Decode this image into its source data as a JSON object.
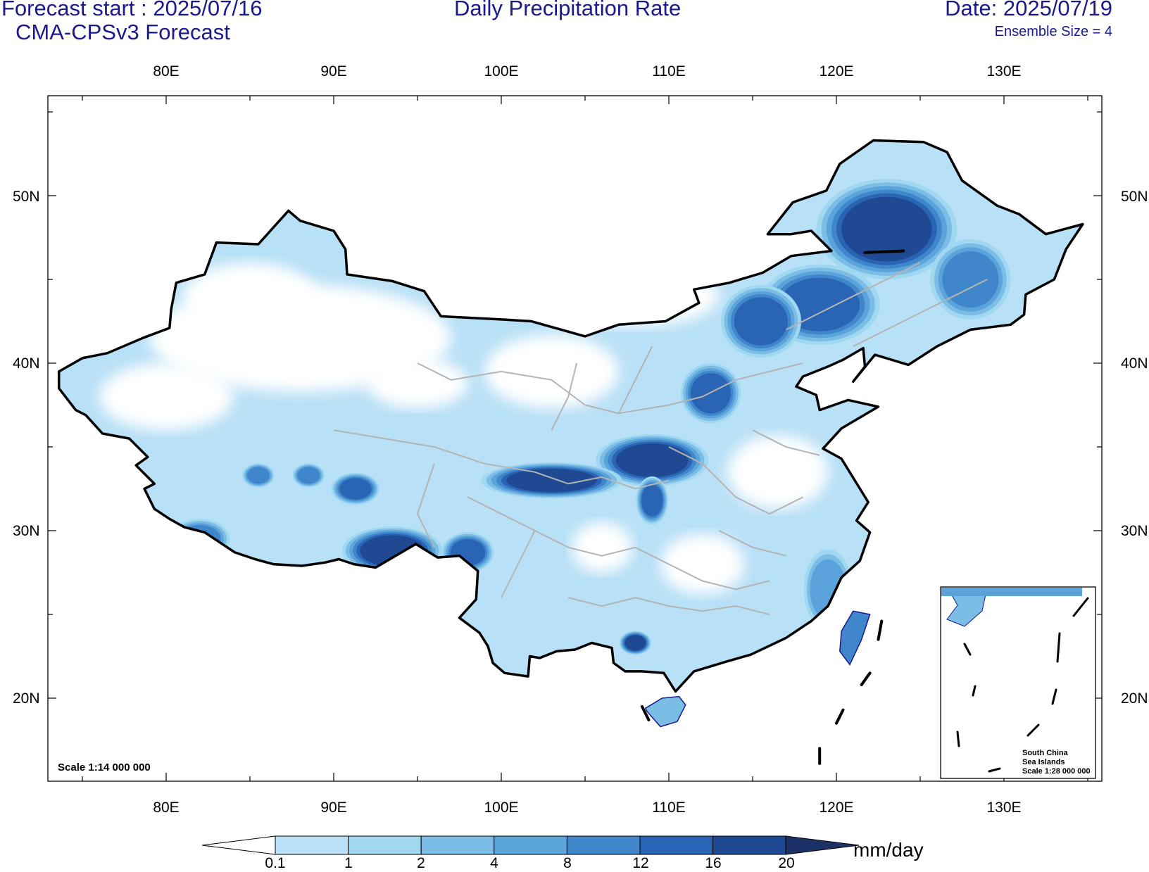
{
  "header": {
    "forecast_start": "Forecast start : 2025/07/16",
    "model": "CMA-CPSv3 Forecast",
    "title": "Daily Precipitation Rate",
    "date": "Date: 2025/07/19",
    "ensemble": "Ensemble Size = 4"
  },
  "axes": {
    "lon_labels": [
      "80E",
      "90E",
      "100E",
      "110E",
      "120E",
      "130E"
    ],
    "lat_labels": [
      "50N",
      "40N",
      "30N",
      "20N"
    ]
  },
  "map": {
    "extent": {
      "lon": [
        72,
        135
      ],
      "lat": [
        15,
        55
      ]
    },
    "scale_note": "Scale 1:14 000 000",
    "inset_label": [
      "South China",
      "Sea Islands",
      "Scale 1:28 000 000"
    ],
    "region": "China",
    "colors": {
      "frame": "#000000",
      "border": "#000000",
      "province": "#b4b4b4",
      "coast": "#1a1a8c"
    }
  },
  "colorbar": {
    "labels": [
      "0.1",
      "1",
      "2",
      "4",
      "8",
      "12",
      "16",
      "20"
    ],
    "units": "mm/day",
    "colors": [
      "#ffffff",
      "#b8e0f6",
      "#a0d8f2",
      "#7cbde6",
      "#5aa3db",
      "#3f86ca",
      "#2a64b4",
      "#1f4a93",
      "#1b3168"
    ]
  },
  "precip_regions": [
    {
      "lon": 123,
      "lat": 48,
      "rx": 3.5,
      "ry": 2.5,
      "level": 7
    },
    {
      "lon": 119,
      "lat": 43.5,
      "rx": 3,
      "ry": 2,
      "level": 6
    },
    {
      "lon": 115.5,
      "lat": 42.5,
      "rx": 2,
      "ry": 1.8,
      "level": 6
    },
    {
      "lon": 112.5,
      "lat": 38.2,
      "rx": 1.5,
      "ry": 1.5,
      "level": 6
    },
    {
      "lon": 109,
      "lat": 34.2,
      "rx": 2.8,
      "ry": 1.3,
      "level": 7
    },
    {
      "lon": 103,
      "lat": 33,
      "rx": 3.5,
      "ry": 0.9,
      "level": 7
    },
    {
      "lon": 109,
      "lat": 31.8,
      "rx": 0.8,
      "ry": 1.2,
      "level": 6
    },
    {
      "lon": 93.5,
      "lat": 28.8,
      "rx": 2.5,
      "ry": 1.2,
      "level": 7
    },
    {
      "lon": 98,
      "lat": 28.7,
      "rx": 1.3,
      "ry": 1,
      "level": 6
    },
    {
      "lon": 108,
      "lat": 23.3,
      "rx": 0.8,
      "ry": 0.6,
      "level": 7
    },
    {
      "lon": 82,
      "lat": 29.5,
      "rx": 1.5,
      "ry": 1,
      "level": 5
    },
    {
      "lon": 85.5,
      "lat": 33.3,
      "rx": 0.8,
      "ry": 0.6,
      "level": 5
    },
    {
      "lon": 88.5,
      "lat": 33.3,
      "rx": 0.8,
      "ry": 0.6,
      "level": 5
    },
    {
      "lon": 91.3,
      "lat": 32.5,
      "rx": 1.2,
      "ry": 0.8,
      "level": 6
    },
    {
      "lon": 121,
      "lat": 23.5,
      "rx": 0.5,
      "ry": 1.2,
      "level": 5
    },
    {
      "lon": 128,
      "lat": 45,
      "rx": 2,
      "ry": 2,
      "level": 5
    },
    {
      "lon": 119.5,
      "lat": 26.5,
      "rx": 1.2,
      "ry": 2,
      "level": 4
    }
  ]
}
